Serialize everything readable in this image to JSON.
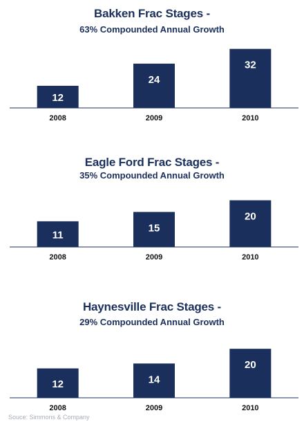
{
  "chart_data": [
    {
      "type": "bar",
      "title": "Bakken Frac Stages -",
      "subtitle": "63% Compounded Annual Growth",
      "categories": [
        "2008",
        "2009",
        "2010"
      ],
      "values": [
        12,
        24,
        32
      ],
      "data_labels": [
        "12",
        "24",
        "32"
      ],
      "ylim": [
        0,
        36
      ],
      "grid": false,
      "legend": "none",
      "bar_color": "#1b2f5c"
    },
    {
      "type": "bar",
      "title": "Eagle Ford Frac Stages -",
      "subtitle": "35% Compounded Annual Growth",
      "categories": [
        "2008",
        "2009",
        "2010"
      ],
      "values": [
        11,
        15,
        20
      ],
      "data_labels": [
        "11",
        "15",
        "20"
      ],
      "ylim": [
        0,
        24
      ],
      "grid": false,
      "legend": "none",
      "bar_color": "#1b2f5c"
    },
    {
      "type": "bar",
      "title": "Haynesville Frac Stages -",
      "subtitle": "29% Compounded Annual Growth",
      "categories": [
        "2008",
        "2009",
        "2010"
      ],
      "values": [
        12,
        14,
        20
      ],
      "data_labels": [
        "12",
        "14",
        "20"
      ],
      "ylim": [
        0,
        24
      ],
      "grid": false,
      "legend": "none",
      "bar_color": "#1b2f5c"
    }
  ],
  "source": "Souce: Simmons & Company"
}
